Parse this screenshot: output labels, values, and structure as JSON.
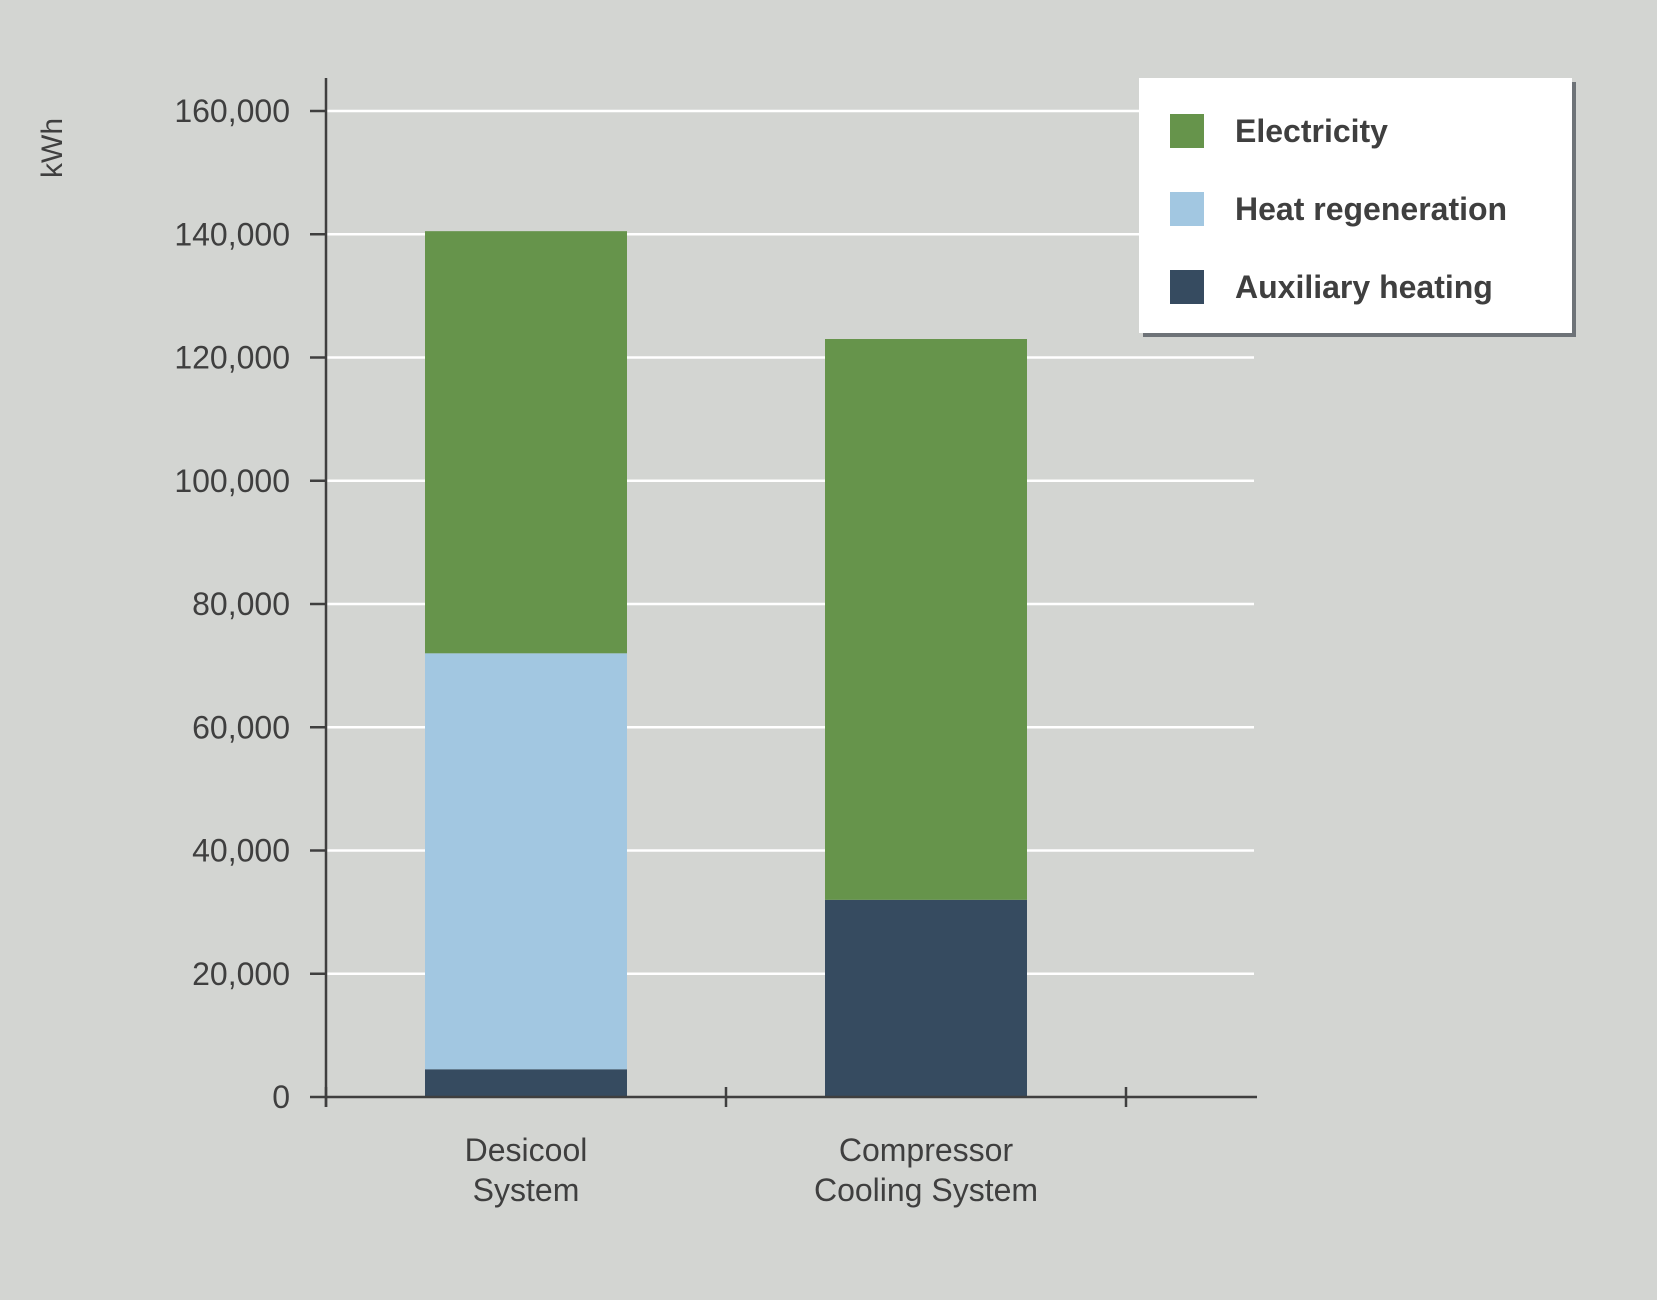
{
  "chart_data": {
    "type": "bar",
    "stacked": true,
    "ylabel": "kWh",
    "xlabel": "",
    "ylim": [
      0,
      160000
    ],
    "yticks": [
      0,
      20000,
      40000,
      60000,
      80000,
      100000,
      120000,
      140000,
      160000
    ],
    "ytick_labels": [
      "0",
      "20,000",
      "40,000",
      "60,000",
      "80,000",
      "100,000",
      "120,000",
      "140,000",
      "160,000"
    ],
    "categories": [
      [
        "Desicool",
        "System"
      ],
      [
        "Compressor",
        "Cooling System"
      ]
    ],
    "series": [
      {
        "name": "Auxiliary heating",
        "color": "#364b60",
        "values": [
          4500,
          32000
        ]
      },
      {
        "name": "Heat regeneration",
        "color": "#a2c7e1",
        "values": [
          67500,
          0
        ]
      },
      {
        "name": "Electricity",
        "color": "#66944b",
        "values": [
          68500,
          91000
        ]
      }
    ],
    "legend": {
      "position": "top-right",
      "order": [
        "Electricity",
        "Heat regeneration",
        "Auxiliary heating"
      ]
    },
    "grid": true,
    "gridline_color": "#ffffff",
    "axis_color": "#3f3f3f"
  }
}
